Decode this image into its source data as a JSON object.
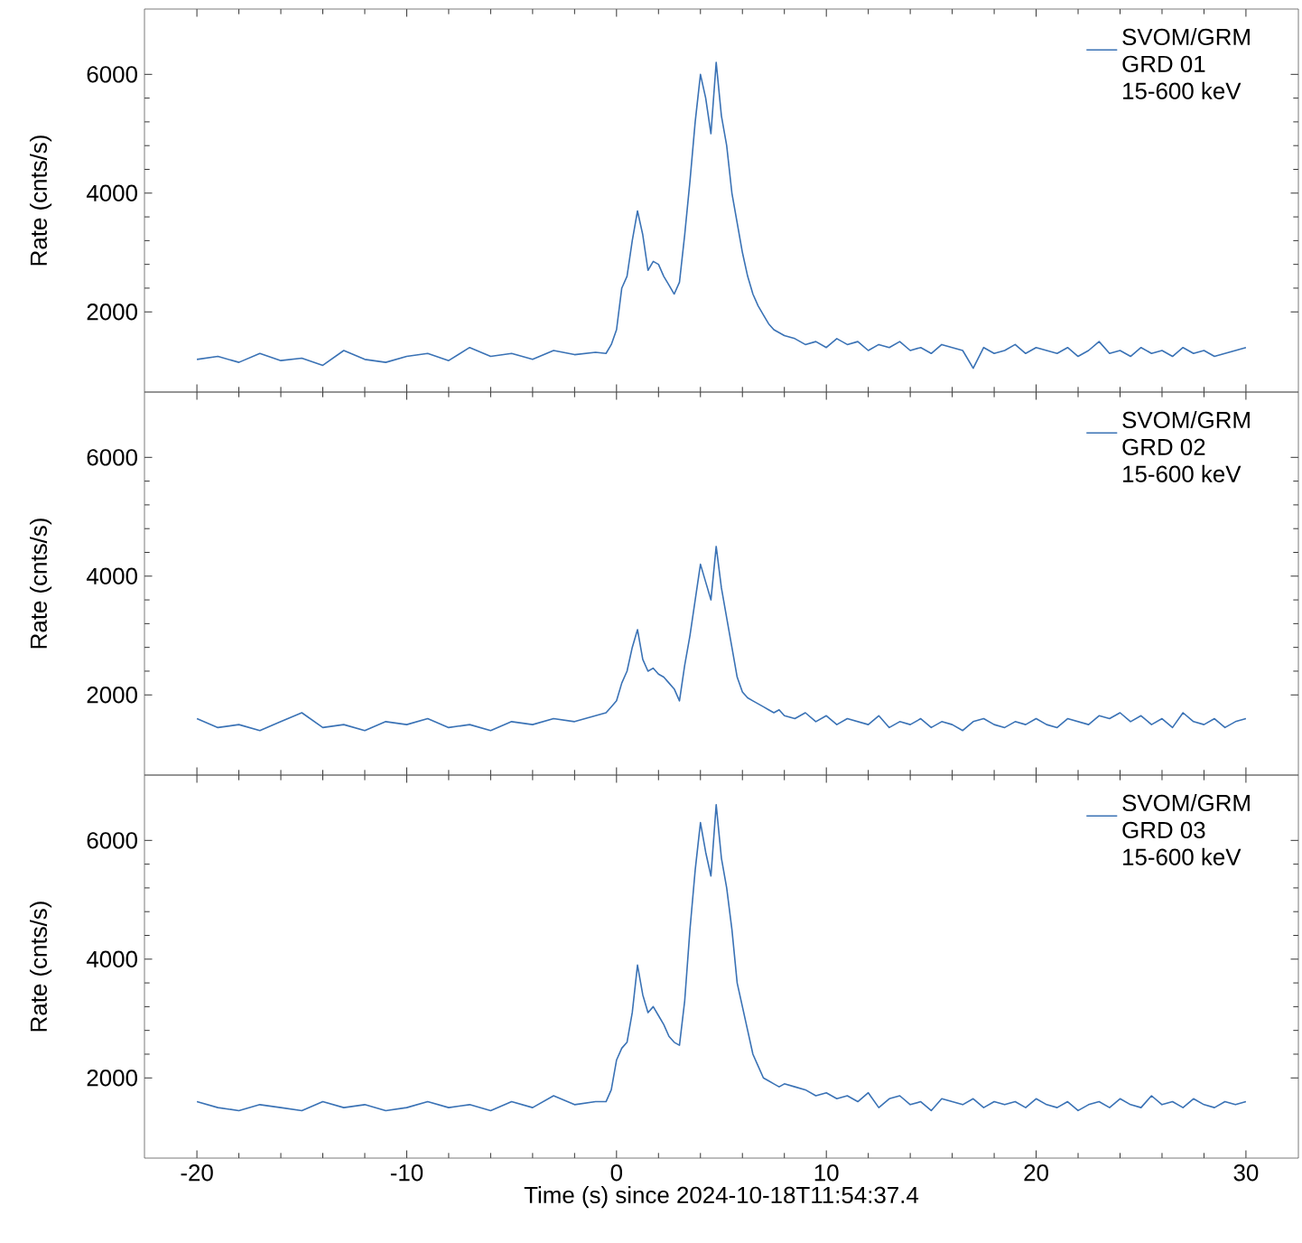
{
  "chart_data": [
    {
      "type": "line",
      "ylabel": "Rate (cnts/s)",
      "xlim": [
        -22.5,
        32.5
      ],
      "ylim": [
        650,
        7100
      ],
      "xticks": [
        -20,
        -10,
        0,
        10,
        20,
        30
      ],
      "yticks": [
        2000,
        4000,
        6000
      ],
      "tick_labels": "y",
      "legend": "top right",
      "x": [
        -20,
        -19,
        -18,
        -17,
        -16,
        -15,
        -14,
        -13,
        -12,
        -11,
        -10,
        -9,
        -8,
        -7,
        -6,
        -5,
        -4,
        -3,
        -2,
        -1,
        -0.5,
        -0.25,
        0,
        0.25,
        0.5,
        0.75,
        1,
        1.25,
        1.5,
        1.75,
        2,
        2.25,
        2.5,
        2.75,
        3,
        3.25,
        3.5,
        3.75,
        4,
        4.25,
        4.5,
        4.75,
        5,
        5.25,
        5.5,
        5.75,
        6,
        6.25,
        6.5,
        6.75,
        7,
        7.25,
        7.5,
        7.75,
        8,
        8.5,
        9,
        9.5,
        10,
        10.5,
        11,
        11.5,
        12,
        12.5,
        13,
        13.5,
        14,
        14.5,
        15,
        15.5,
        16,
        16.5,
        17,
        17.5,
        18,
        18.5,
        19,
        19.5,
        20,
        20.5,
        21,
        21.5,
        22,
        22.5,
        23,
        23.5,
        24,
        24.5,
        25,
        25.5,
        26,
        26.5,
        27,
        27.5,
        28,
        28.5,
        29,
        29.5,
        30
      ],
      "series": [
        {
          "name": "SVOM/GRM GRD 01 15-600 keV",
          "color": "#3a72b5",
          "values": [
            1200,
            1250,
            1150,
            1300,
            1180,
            1220,
            1100,
            1350,
            1200,
            1150,
            1250,
            1300,
            1180,
            1400,
            1250,
            1300,
            1200,
            1350,
            1280,
            1320,
            1300,
            1450,
            1700,
            2400,
            2600,
            3200,
            3700,
            3300,
            2700,
            2850,
            2800,
            2600,
            2450,
            2300,
            2500,
            3300,
            4200,
            5200,
            6000,
            5600,
            5000,
            6200,
            5300,
            4800,
            4000,
            3500,
            3000,
            2600,
            2300,
            2100,
            1950,
            1800,
            1700,
            1650,
            1600,
            1550,
            1450,
            1500,
            1400,
            1550,
            1450,
            1500,
            1350,
            1450,
            1400,
            1500,
            1350,
            1400,
            1300,
            1450,
            1400,
            1350,
            1050,
            1400,
            1300,
            1350,
            1450,
            1300,
            1400,
            1350,
            1300,
            1400,
            1250,
            1350,
            1500,
            1300,
            1350,
            1250,
            1400,
            1300,
            1350,
            1250,
            1400,
            1300,
            1350,
            1250,
            1300,
            1350,
            1400
          ]
        }
      ]
    },
    {
      "type": "line",
      "ylabel": "Rate (cnts/s)",
      "xlim": [
        -22.5,
        32.5
      ],
      "ylim": [
        650,
        7100
      ],
      "xticks": [
        -20,
        -10,
        0,
        10,
        20,
        30
      ],
      "yticks": [
        2000,
        4000,
        6000
      ],
      "tick_labels": "y",
      "legend": "top right",
      "x": [
        -20,
        -19,
        -18,
        -17,
        -16,
        -15,
        -14,
        -13,
        -12,
        -11,
        -10,
        -9,
        -8,
        -7,
        -6,
        -5,
        -4,
        -3,
        -2,
        -1,
        -0.5,
        -0.25,
        0,
        0.25,
        0.5,
        0.75,
        1,
        1.25,
        1.5,
        1.75,
        2,
        2.25,
        2.5,
        2.75,
        3,
        3.25,
        3.5,
        3.75,
        4,
        4.25,
        4.5,
        4.75,
        5,
        5.25,
        5.5,
        5.75,
        6,
        6.25,
        6.5,
        6.75,
        7,
        7.25,
        7.5,
        7.75,
        8,
        8.5,
        9,
        9.5,
        10,
        10.5,
        11,
        11.5,
        12,
        12.5,
        13,
        13.5,
        14,
        14.5,
        15,
        15.5,
        16,
        16.5,
        17,
        17.5,
        18,
        18.5,
        19,
        19.5,
        20,
        20.5,
        21,
        21.5,
        22,
        22.5,
        23,
        23.5,
        24,
        24.5,
        25,
        25.5,
        26,
        26.5,
        27,
        27.5,
        28,
        28.5,
        29,
        29.5,
        30
      ],
      "series": [
        {
          "name": "SVOM/GRM GRD 02 15-600 keV",
          "color": "#3a72b5",
          "values": [
            1600,
            1450,
            1500,
            1400,
            1550,
            1700,
            1450,
            1500,
            1400,
            1550,
            1500,
            1600,
            1450,
            1500,
            1400,
            1550,
            1500,
            1600,
            1550,
            1650,
            1700,
            1800,
            1900,
            2200,
            2400,
            2800,
            3100,
            2600,
            2400,
            2450,
            2350,
            2300,
            2200,
            2100,
            1900,
            2500,
            3000,
            3600,
            4200,
            3900,
            3600,
            4500,
            3800,
            3300,
            2800,
            2300,
            2050,
            1950,
            1900,
            1850,
            1800,
            1750,
            1700,
            1750,
            1650,
            1600,
            1700,
            1550,
            1650,
            1500,
            1600,
            1550,
            1500,
            1650,
            1450,
            1550,
            1500,
            1600,
            1450,
            1550,
            1500,
            1400,
            1550,
            1600,
            1500,
            1450,
            1550,
            1500,
            1600,
            1500,
            1450,
            1600,
            1550,
            1500,
            1650,
            1600,
            1700,
            1550,
            1650,
            1500,
            1600,
            1450,
            1700,
            1550,
            1500,
            1600,
            1450,
            1550,
            1600
          ]
        }
      ]
    },
    {
      "type": "line",
      "xlabel": "Time (s) since 2024-10-18T11:54:37.4",
      "ylabel": "Rate (cnts/s)",
      "xlim": [
        -22.5,
        32.5
      ],
      "ylim": [
        650,
        7100
      ],
      "xticks": [
        -20,
        -10,
        0,
        10,
        20,
        30
      ],
      "yticks": [
        2000,
        4000,
        6000
      ],
      "legend": "top right",
      "x": [
        -20,
        -19,
        -18,
        -17,
        -16,
        -15,
        -14,
        -13,
        -12,
        -11,
        -10,
        -9,
        -8,
        -7,
        -6,
        -5,
        -4,
        -3,
        -2,
        -1,
        -0.5,
        -0.25,
        0,
        0.25,
        0.5,
        0.75,
        1,
        1.25,
        1.5,
        1.75,
        2,
        2.25,
        2.5,
        2.75,
        3,
        3.25,
        3.5,
        3.75,
        4,
        4.25,
        4.5,
        4.75,
        5,
        5.25,
        5.5,
        5.75,
        6,
        6.25,
        6.5,
        6.75,
        7,
        7.25,
        7.5,
        7.75,
        8,
        8.5,
        9,
        9.5,
        10,
        10.5,
        11,
        11.5,
        12,
        12.5,
        13,
        13.5,
        14,
        14.5,
        15,
        15.5,
        16,
        16.5,
        17,
        17.5,
        18,
        18.5,
        19,
        19.5,
        20,
        20.5,
        21,
        21.5,
        22,
        22.5,
        23,
        23.5,
        24,
        24.5,
        25,
        25.5,
        26,
        26.5,
        27,
        27.5,
        28,
        28.5,
        29,
        29.5,
        30
      ],
      "series": [
        {
          "name": "SVOM/GRM GRD 03 15-600 keV",
          "color": "#3a72b5",
          "values": [
            1600,
            1500,
            1450,
            1550,
            1500,
            1450,
            1600,
            1500,
            1550,
            1450,
            1500,
            1600,
            1500,
            1550,
            1450,
            1600,
            1500,
            1700,
            1550,
            1600,
            1600,
            1800,
            2300,
            2500,
            2600,
            3100,
            3900,
            3400,
            3100,
            3200,
            3050,
            2900,
            2700,
            2600,
            2550,
            3300,
            4500,
            5500,
            6300,
            5800,
            5400,
            6600,
            5700,
            5200,
            4500,
            3600,
            3200,
            2800,
            2400,
            2200,
            2000,
            1950,
            1900,
            1850,
            1900,
            1850,
            1800,
            1700,
            1750,
            1650,
            1700,
            1600,
            1750,
            1500,
            1650,
            1700,
            1550,
            1600,
            1450,
            1650,
            1600,
            1550,
            1650,
            1500,
            1600,
            1550,
            1600,
            1500,
            1650,
            1550,
            1500,
            1600,
            1450,
            1550,
            1600,
            1500,
            1650,
            1550,
            1500,
            1700,
            1550,
            1600,
            1500,
            1650,
            1550,
            1500,
            1600,
            1550,
            1600
          ]
        }
      ]
    }
  ]
}
